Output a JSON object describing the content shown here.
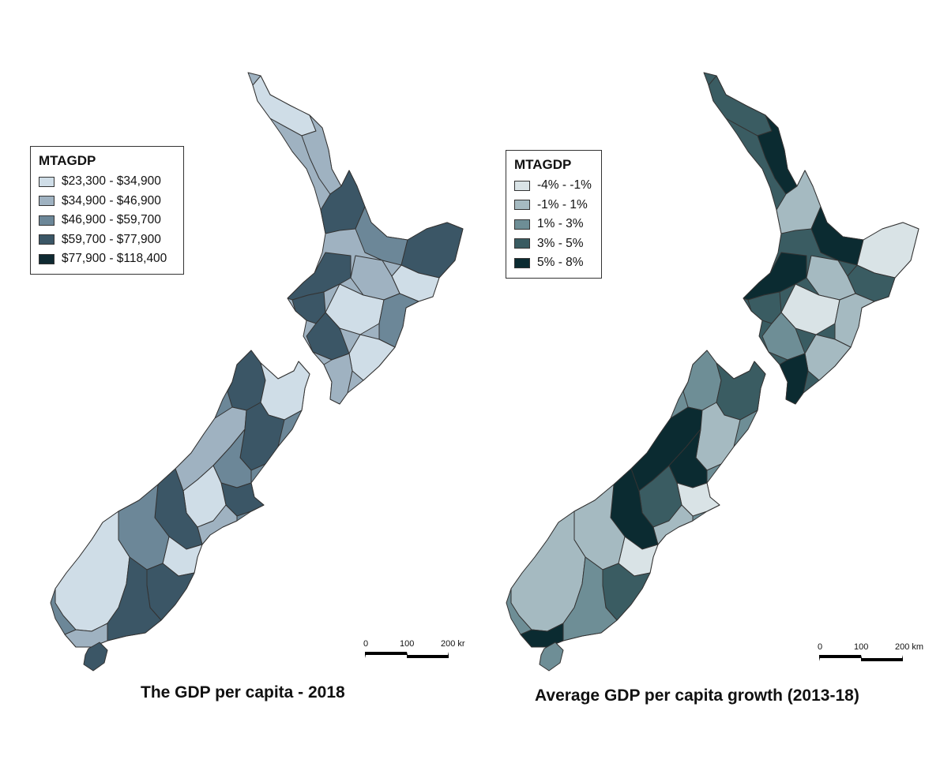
{
  "maps": [
    {
      "caption": "The GDP per capita - 2018",
      "legend": {
        "title": "MTAGDP",
        "items": [
          {
            "label": "$23,300 - $34,900",
            "color": "#cfdde7"
          },
          {
            "label": "$34,900 - $46,900",
            "color": "#9fb2c1"
          },
          {
            "label": "$46,900 - $59,700",
            "color": "#6c8798"
          },
          {
            "label": "$59,700 - $77,900",
            "color": "#3b5666"
          },
          {
            "label": "$77,900 - $118,400",
            "color": "#0f2a32"
          }
        ]
      },
      "scale": {
        "ticks": [
          "0",
          "100",
          "200 kr"
        ]
      },
      "island_colors": {
        "north": "#9fb2c1",
        "south": "#6c8798",
        "stewart": "#3b5666"
      },
      "region_colors": [
        "#cfdde7",
        "#9fb2c1",
        "#3b5666",
        "#6c8798",
        "#3b5666",
        "#cfdde7",
        "#9fb2c1",
        "#3b5666",
        "#cfdde7",
        "#6c8798",
        "#3b5666",
        "#cfdde7",
        "#3b5666",
        "#9fb2c1",
        "#3b5666"
      ]
    },
    {
      "caption": "Average GDP per capita growth (2013-18)",
      "legend": {
        "title": "MTAGDP",
        "items": [
          {
            "label": "-4% - -1%",
            "color": "#d9e3e6"
          },
          {
            "label": "-1% - 1%",
            "color": "#a5bac1"
          },
          {
            "label": "1% - 3%",
            "color": "#6e8e96"
          },
          {
            "label": "3% - 5%",
            "color": "#3a5c62"
          },
          {
            "label": "5% - 8%",
            "color": "#0b2b31"
          }
        ]
      },
      "scale": {
        "ticks": [
          "0",
          "100",
          "200 km"
        ]
      },
      "island_colors": {
        "north": "#3a5c62",
        "south": "#6e8e96",
        "stewart": "#6e8e96"
      },
      "region_colors": [
        "#3a5c62",
        "#0b2b31",
        "#a5bac1",
        "#0b2b31",
        "#d9e3e6",
        "#3a5c62",
        "#a5bac1",
        "#0b2b31",
        "#d9e3e6",
        "#a5bac1",
        "#3a5c62",
        "#a5bac1",
        "#6e8e96",
        "#0b2b31",
        "#6e8e96"
      ]
    }
  ]
}
